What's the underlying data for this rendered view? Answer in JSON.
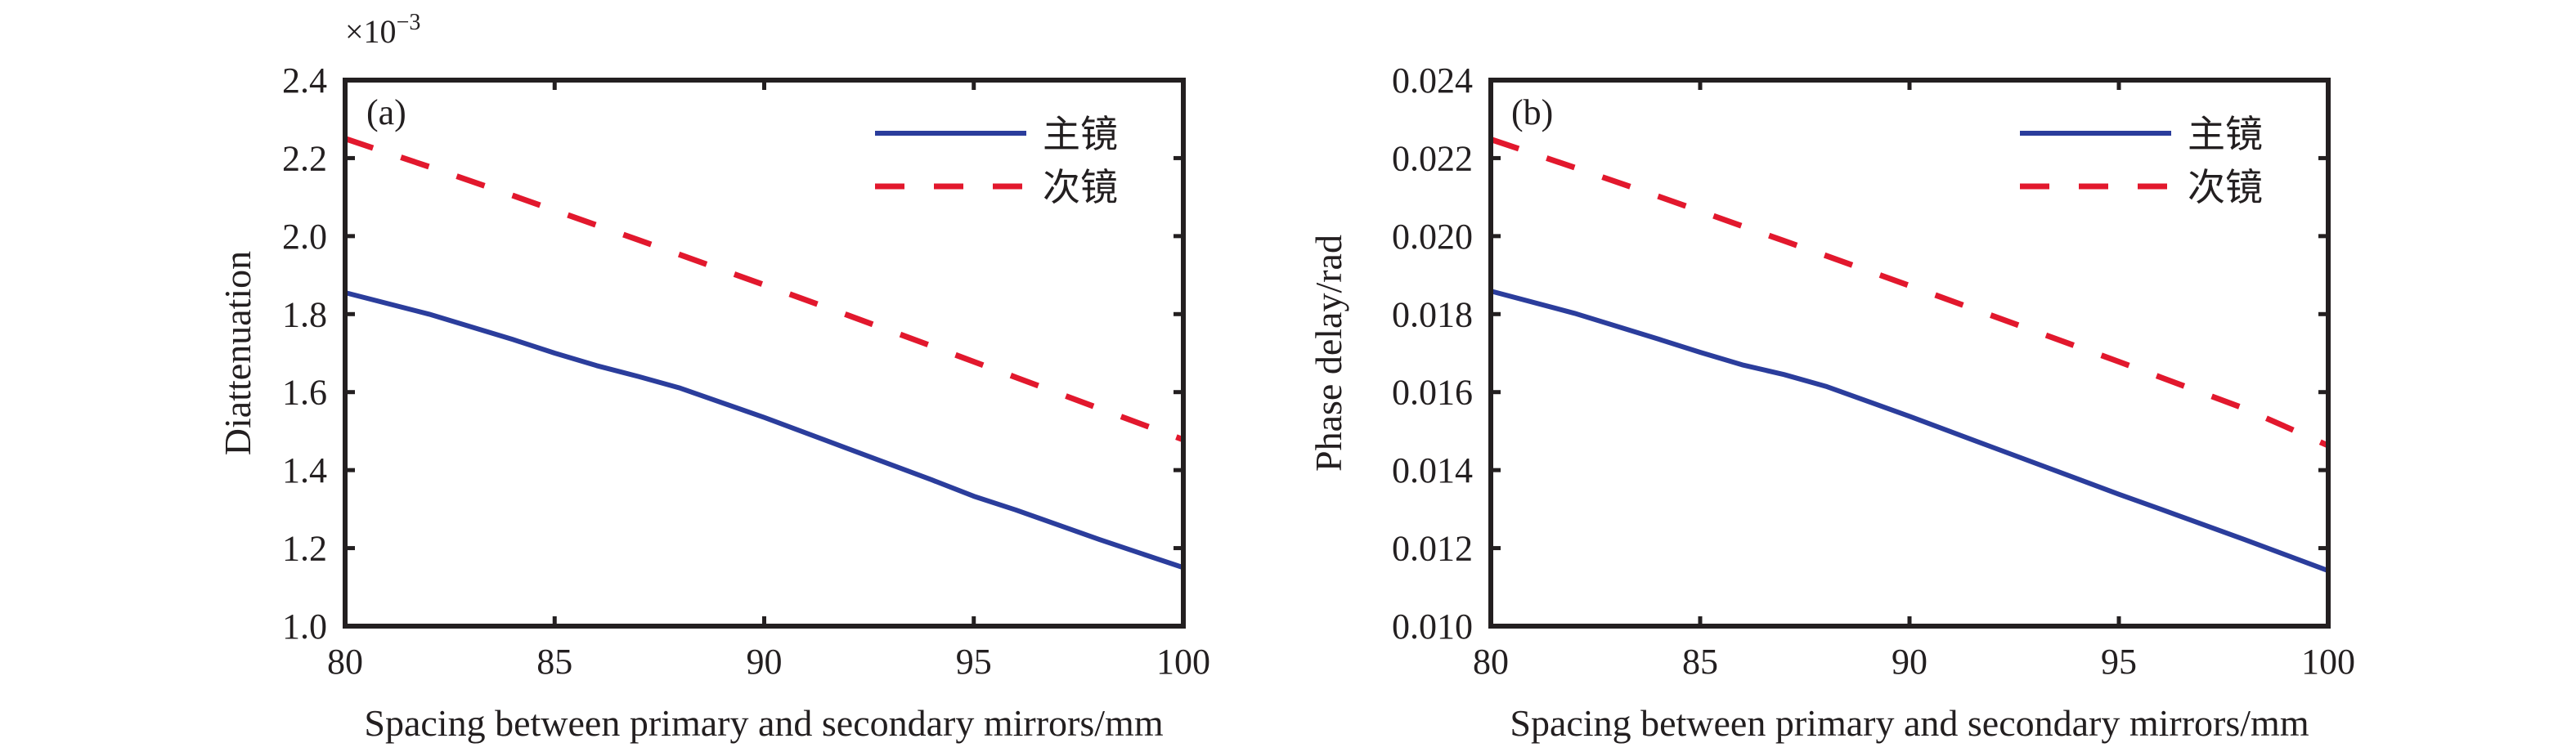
{
  "chart_data": [
    {
      "type": "line",
      "panel_label": "(a)",
      "title": "",
      "xlabel": "Spacing between primary and secondary mirrors/mm",
      "ylabel": "Diattenuation",
      "y_multiplier_label": "×10",
      "y_multiplier_exponent": "−3",
      "xlim": [
        80,
        100
      ],
      "ylim": [
        1.0,
        2.4
      ],
      "xticks": [
        80,
        85,
        90,
        95,
        100
      ],
      "xtick_labels": [
        "80",
        "85",
        "90",
        "95",
        "100"
      ],
      "yticks": [
        1.0,
        1.2,
        1.4,
        1.6,
        1.8,
        2.0,
        2.2,
        2.4
      ],
      "ytick_labels": [
        "1.0",
        "1.2",
        "1.4",
        "1.6",
        "1.8",
        "2.0",
        "2.2",
        "2.4"
      ],
      "grid": false,
      "legend_position": "top-right",
      "x": [
        80,
        82,
        84,
        85,
        86,
        87,
        88,
        90,
        92,
        94,
        95,
        96,
        98,
        100
      ],
      "series": [
        {
          "name": "主镜",
          "style": "solid",
          "color": "#2b3d9c",
          "values": [
            1.855,
            1.8,
            1.735,
            1.7,
            1.668,
            1.64,
            1.61,
            1.535,
            1.455,
            1.375,
            1.333,
            1.298,
            1.222,
            1.15
          ]
        },
        {
          "name": "次镜",
          "style": "dashed",
          "color": "#e2182d",
          "values": [
            2.25,
            2.178,
            2.104,
            2.066,
            2.028,
            1.99,
            1.952,
            1.875,
            1.797,
            1.718,
            1.678,
            1.638,
            1.558,
            1.478
          ]
        }
      ]
    },
    {
      "type": "line",
      "panel_label": "(b)",
      "title": "",
      "xlabel": "Spacing between primary and secondary mirrors/mm",
      "ylabel": "Phase delay/rad",
      "xlim": [
        80,
        100
      ],
      "ylim": [
        0.01,
        0.024
      ],
      "xticks": [
        80,
        85,
        90,
        95,
        100
      ],
      "xtick_labels": [
        "80",
        "85",
        "90",
        "95",
        "100"
      ],
      "yticks": [
        0.01,
        0.012,
        0.014,
        0.016,
        0.018,
        0.02,
        0.022,
        0.024
      ],
      "ytick_labels": [
        "0.010",
        "0.012",
        "0.014",
        "0.016",
        "0.018",
        "0.020",
        "0.022",
        "0.024"
      ],
      "grid": false,
      "legend_position": "top-right",
      "x": [
        80,
        82,
        84,
        85,
        86,
        87,
        88,
        90,
        92,
        94,
        95,
        96,
        98,
        100
      ],
      "series": [
        {
          "name": "主镜",
          "style": "solid",
          "color": "#2b3d9c",
          "values": [
            0.01859,
            0.01802,
            0.01736,
            0.01702,
            0.0167,
            0.01645,
            0.01615,
            0.01538,
            0.01458,
            0.01378,
            0.01338,
            0.013,
            0.01222,
            0.01142
          ]
        },
        {
          "name": "次镜",
          "style": "dashed",
          "color": "#e2182d",
          "values": [
            0.02248,
            0.02176,
            0.02102,
            0.02064,
            0.02026,
            0.01988,
            0.0195,
            0.01873,
            0.01795,
            0.01717,
            0.01678,
            0.01638,
            0.01558,
            0.01463
          ]
        }
      ]
    }
  ]
}
